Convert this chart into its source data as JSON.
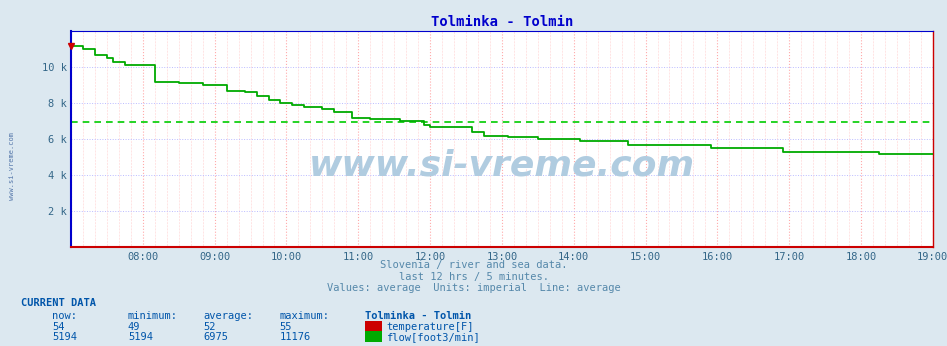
{
  "title": "Tolminka - Tolmin",
  "title_color": "#0000cc",
  "bg_color": "#dce8f0",
  "plot_bg_color": "#ffffff",
  "xlim": [
    0,
    144
  ],
  "ylim": [
    0,
    12000
  ],
  "yticks": [
    0,
    2000,
    4000,
    6000,
    8000,
    10000,
    12000
  ],
  "ytick_labels": [
    "",
    "2 k",
    "4 k",
    "6 k",
    "8 k",
    "10 k",
    ""
  ],
  "xtick_positions": [
    12,
    24,
    36,
    48,
    60,
    72,
    84,
    96,
    108,
    120,
    132,
    144
  ],
  "xtick_labels": [
    "08:00",
    "09:00",
    "10:00",
    "11:00",
    "12:00",
    "13:00",
    "14:00",
    "15:00",
    "16:00",
    "17:00",
    "18:00",
    "19:00"
  ],
  "grid_color_h": "#bbbbff",
  "grid_color_v": "#ffaaaa",
  "flow_color": "#00aa00",
  "flow_average": 6975,
  "flow_average_color": "#00cc00",
  "temp_color": "#cc0000",
  "watermark_text": "www.si-vreme.com",
  "watermark_color": "#b0cce0",
  "subtitle1": "Slovenia / river and sea data.",
  "subtitle2": "last 12 hrs / 5 minutes.",
  "subtitle3": "Values: average  Units: imperial  Line: average",
  "subtitle_color": "#5588aa",
  "current_data_label": "CURRENT DATA",
  "current_data_color": "#0055aa",
  "table_headers": [
    "now:",
    "minimum:",
    "average:",
    "maximum:",
    "Tolminka - Tolmin"
  ],
  "temp_row": [
    "54",
    "49",
    "52",
    "55"
  ],
  "flow_row": [
    "5194",
    "5194",
    "6975",
    "11176"
  ],
  "flow_data_x": [
    0,
    1,
    2,
    3,
    4,
    5,
    6,
    7,
    8,
    9,
    10,
    11,
    12,
    13,
    14,
    15,
    16,
    17,
    18,
    19,
    20,
    21,
    22,
    23,
    24,
    25,
    26,
    27,
    28,
    29,
    30,
    31,
    32,
    33,
    34,
    35,
    36,
    37,
    38,
    39,
    40,
    41,
    42,
    43,
    44,
    45,
    46,
    47,
    48,
    49,
    50,
    51,
    52,
    53,
    54,
    55,
    56,
    57,
    58,
    59,
    60,
    61,
    62,
    63,
    64,
    65,
    66,
    67,
    68,
    69,
    70,
    71,
    72,
    73,
    74,
    75,
    76,
    77,
    78,
    79,
    80,
    81,
    82,
    83,
    84,
    85,
    86,
    87,
    88,
    89,
    90,
    91,
    92,
    93,
    94,
    95,
    96,
    97,
    98,
    99,
    100,
    101,
    102,
    103,
    104,
    105,
    106,
    107,
    108,
    109,
    110,
    111,
    112,
    113,
    114,
    115,
    116,
    117,
    118,
    119,
    120,
    121,
    122,
    123,
    124,
    125,
    126,
    127,
    128,
    129,
    130,
    131,
    132,
    133,
    134,
    135,
    136,
    137,
    138,
    139,
    140,
    141,
    142,
    143,
    144
  ],
  "flow_data_y": [
    11176,
    11176,
    11000,
    11000,
    10700,
    10700,
    10500,
    10300,
    10300,
    10100,
    10100,
    10100,
    10100,
    10100,
    9200,
    9200,
    9200,
    9200,
    9100,
    9100,
    9100,
    9100,
    9000,
    9000,
    9000,
    9000,
    8700,
    8700,
    8700,
    8600,
    8600,
    8400,
    8400,
    8200,
    8200,
    8000,
    8000,
    7900,
    7900,
    7800,
    7800,
    7800,
    7700,
    7700,
    7500,
    7500,
    7500,
    7200,
    7200,
    7200,
    7100,
    7100,
    7100,
    7100,
    7100,
    7000,
    7000,
    7000,
    7000,
    6800,
    6700,
    6700,
    6700,
    6700,
    6700,
    6700,
    6700,
    6400,
    6400,
    6200,
    6200,
    6200,
    6200,
    6100,
    6100,
    6100,
    6100,
    6100,
    6000,
    6000,
    6000,
    6000,
    6000,
    6000,
    6000,
    5900,
    5900,
    5900,
    5900,
    5900,
    5900,
    5900,
    5900,
    5700,
    5700,
    5700,
    5700,
    5700,
    5700,
    5700,
    5700,
    5700,
    5700,
    5700,
    5700,
    5700,
    5700,
    5500,
    5500,
    5500,
    5500,
    5500,
    5500,
    5500,
    5500,
    5500,
    5500,
    5500,
    5500,
    5300,
    5300,
    5300,
    5300,
    5300,
    5300,
    5300,
    5300,
    5300,
    5300,
    5300,
    5300,
    5300,
    5300,
    5300,
    5300,
    5194,
    5194,
    5194,
    5194,
    5194,
    5194,
    5194,
    5194,
    5194,
    5194
  ]
}
